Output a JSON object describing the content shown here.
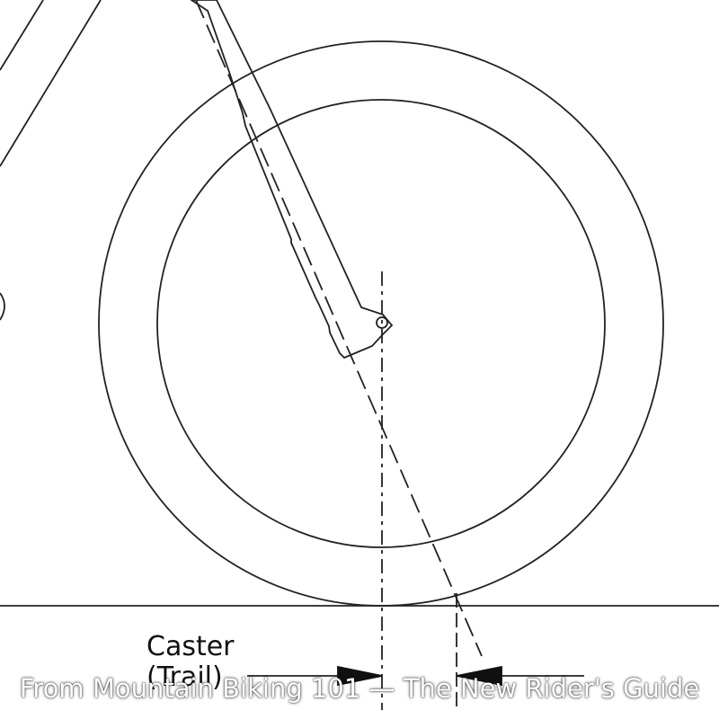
{
  "labels": {
    "caster": "Caster",
    "trail": "(Trail)"
  },
  "caption": "From Mountain Biking 101 — The New Rider's Guide",
  "colors": {
    "line": "#222222",
    "background": "#ffffff",
    "caption_text": "#ffffff"
  }
}
